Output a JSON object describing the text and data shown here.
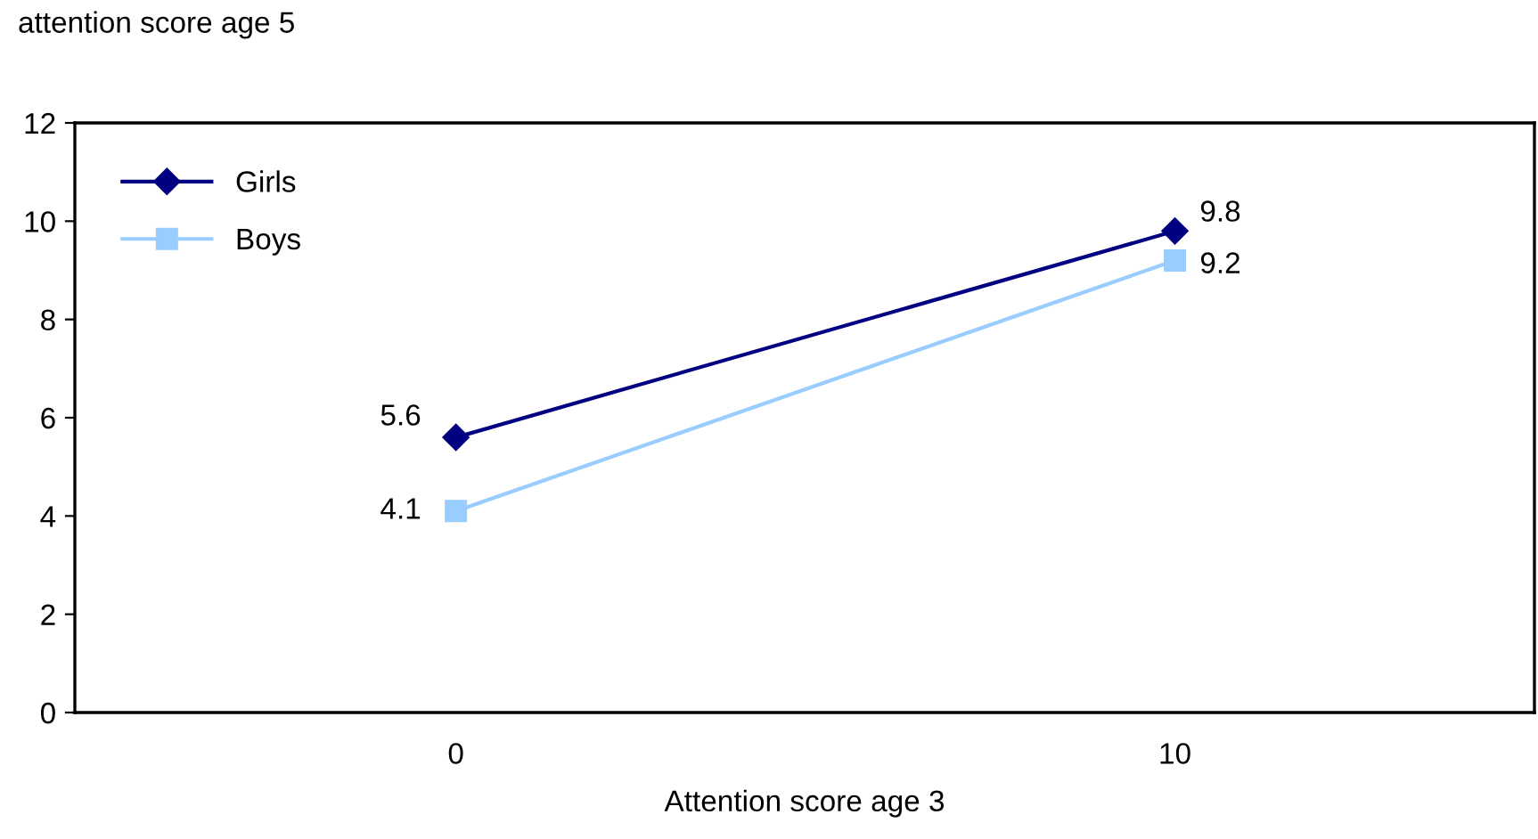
{
  "chart_data": {
    "type": "line",
    "ylabel": "attention score age 5",
    "xlabel": "Attention score age 3",
    "x": [
      0,
      10
    ],
    "xlim": [
      -5.3,
      15
    ],
    "xticks": [
      0,
      10
    ],
    "series": [
      {
        "name": "Girls",
        "color": "#000080",
        "values": [
          5.6,
          9.8
        ],
        "marker": "diamond"
      },
      {
        "name": "Boys",
        "color": "#99ccff",
        "values": [
          4.1,
          9.2
        ],
        "marker": "square"
      }
    ],
    "ylim": [
      0,
      12
    ],
    "yticks": [
      0,
      2,
      4,
      6,
      8,
      10,
      12
    ],
    "grid": false,
    "legend": "top left",
    "data_labels": true,
    "line_style": "solid"
  }
}
